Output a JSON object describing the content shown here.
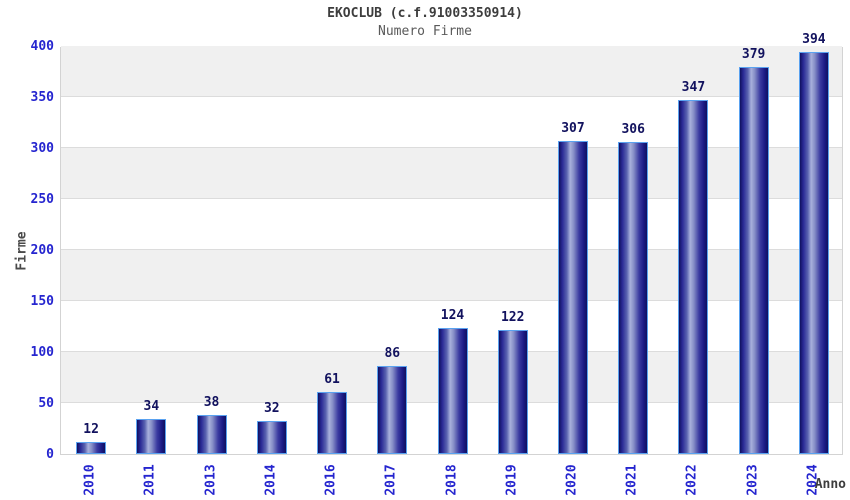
{
  "chart_data": {
    "type": "bar",
    "title": "EKOCLUB (c.f.91003350914)",
    "subtitle": "Numero Firme",
    "xlabel": "Anno",
    "ylabel": "Firme",
    "categories": [
      "2010",
      "2011",
      "2013",
      "2014",
      "2016",
      "2017",
      "2018",
      "2019",
      "2020",
      "2021",
      "2022",
      "2023",
      "2024"
    ],
    "values": [
      12,
      34,
      38,
      32,
      61,
      86,
      124,
      122,
      307,
      306,
      347,
      379,
      394
    ],
    "ylim": [
      0,
      400
    ],
    "ytick_step": 50,
    "yticks": [
      0,
      50,
      100,
      150,
      200,
      250,
      300,
      350,
      400
    ],
    "grid": true,
    "legend": false,
    "colors": {
      "bar_edge_dark": "#10105f",
      "bar_mid_dark": "#2a2a96",
      "bar_highlight": "#a8b0dc",
      "bar_border": "#5aa2f0",
      "tick_label": "#2525cf",
      "value_label": "#12125e",
      "band_gray": "#f0f0f0",
      "gridline": "#dcdcdc",
      "title_text": "#3d3d3d",
      "subtitle_text": "#5a5a5a"
    }
  }
}
